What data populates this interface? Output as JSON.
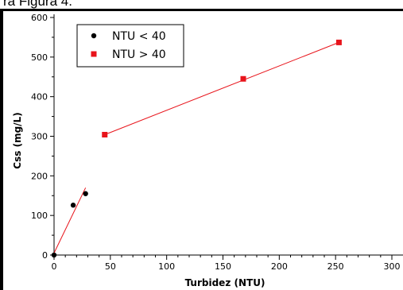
{
  "caption": "ra Figura 4.",
  "chart_data": {
    "type": "scatter",
    "title": "",
    "xlabel": "Turbidez (NTU)",
    "ylabel": "Css (mg/L)",
    "xlim": [
      0,
      300
    ],
    "ylim": [
      0,
      600
    ],
    "xticks": [
      0,
      50,
      100,
      150,
      200,
      250,
      300
    ],
    "xtick_labels": [
      "0",
      "50",
      "100",
      "150",
      "200",
      "250",
      "300"
    ],
    "yticks": [
      0,
      100,
      200,
      300,
      400,
      500,
      600
    ],
    "ytick_labels": [
      "0",
      "100",
      "200",
      "300",
      "400",
      "500",
      "600"
    ],
    "grid": false,
    "legend_position": "top-left",
    "series": [
      {
        "name": "NTU < 40",
        "marker": "circle",
        "color": "#000000",
        "points": [
          {
            "x": 0,
            "y": 0
          },
          {
            "x": 17,
            "y": 126
          },
          {
            "x": 28,
            "y": 155
          }
        ]
      },
      {
        "name": "NTU > 40",
        "marker": "square",
        "color": "#e8141b",
        "points": [
          {
            "x": 45,
            "y": 304
          },
          {
            "x": 168,
            "y": 445
          },
          {
            "x": 253,
            "y": 537
          }
        ]
      }
    ],
    "fit_lines": [
      {
        "series": "NTU < 40",
        "color": "#e8141b",
        "from": {
          "x": 0,
          "y": 5
        },
        "to": {
          "x": 28,
          "y": 170
        }
      },
      {
        "series": "NTU > 40",
        "color": "#e8141b",
        "from": {
          "x": 45,
          "y": 304
        },
        "to": {
          "x": 253,
          "y": 537
        }
      }
    ]
  }
}
